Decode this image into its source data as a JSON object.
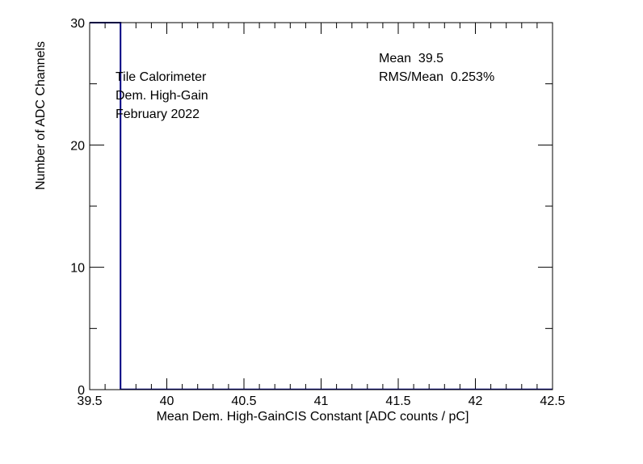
{
  "chart_data": {
    "type": "bar",
    "xlabel": "Mean Dem. High-GainCIS Constant [ADC counts / pC]",
    "ylabel": "Number of ADC Channels",
    "xlim": [
      39.5,
      42.5
    ],
    "ylim": [
      0,
      30
    ],
    "x_ticks": [
      "39.5",
      "40",
      "40.5",
      "41",
      "41.5",
      "42",
      "42.5"
    ],
    "y_ticks": [
      "0",
      "10",
      "20",
      "30"
    ],
    "bins": [
      {
        "x_low": 39.5,
        "x_high": 39.7,
        "value": 30
      }
    ],
    "series_color": "#000080",
    "grid": false,
    "annotations": {
      "label_lines": [
        "Tile Calorimeter",
        "Dem. High-Gain",
        "February 2022"
      ],
      "stats_lines": [
        "Mean  39.5",
        "RMS/Mean  0.253%"
      ]
    }
  }
}
